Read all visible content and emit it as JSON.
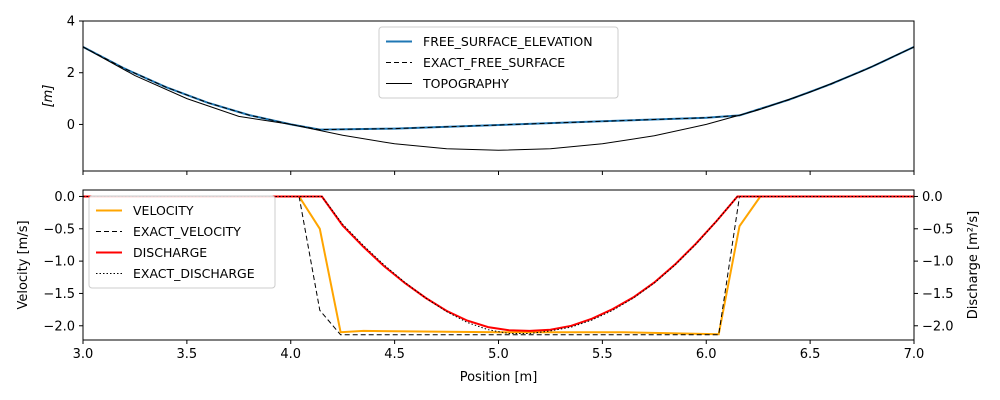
{
  "chart_data": [
    {
      "type": "line",
      "ylabel": "[m]",
      "xlim": [
        3.0,
        7.0
      ],
      "ylim": [
        -1.8,
        4.0
      ],
      "yticks": [
        0,
        2,
        4
      ],
      "grid": false,
      "legend_placement": "top-center",
      "series": [
        {
          "name": "FREE_SURFACE_ELEVATION",
          "color": "#1f77b4",
          "style": "solid",
          "x": [
            3.0,
            3.2,
            3.4,
            3.6,
            3.8,
            4.0,
            4.14,
            4.5,
            5.0,
            5.5,
            6.0,
            6.16,
            6.4,
            6.6,
            6.8,
            7.0
          ],
          "y": [
            3.0,
            2.16,
            1.44,
            0.84,
            0.36,
            0.0,
            -0.2,
            -0.16,
            -0.02,
            0.12,
            0.26,
            0.35,
            0.96,
            1.56,
            2.24,
            3.0
          ]
        },
        {
          "name": "EXACT_FREE_SURFACE",
          "color": "#000000",
          "style": "dashed",
          "x": [
            3.0,
            3.2,
            3.4,
            3.6,
            3.8,
            4.0,
            4.14,
            4.5,
            5.0,
            5.5,
            6.0,
            6.16,
            6.4,
            6.6,
            6.8,
            7.0
          ],
          "y": [
            3.0,
            2.16,
            1.44,
            0.84,
            0.36,
            0.0,
            -0.2,
            -0.16,
            -0.02,
            0.12,
            0.26,
            0.35,
            0.96,
            1.56,
            2.24,
            3.0
          ]
        },
        {
          "name": "TOPOGRAPHY",
          "color": "#000000",
          "style": "solid",
          "x": [
            3.0,
            3.25,
            3.5,
            3.75,
            4.0,
            4.25,
            4.5,
            4.75,
            5.0,
            5.25,
            5.5,
            5.75,
            6.0,
            6.25,
            6.5,
            6.75,
            7.0
          ],
          "y": [
            3.0,
            1.89,
            1.0,
            0.31,
            0.0,
            -0.42,
            -0.75,
            -0.94,
            -1.0,
            -0.94,
            -0.75,
            -0.44,
            0.0,
            0.56,
            1.25,
            2.06,
            3.0
          ]
        }
      ]
    },
    {
      "type": "line",
      "xlabel": "Position [m]",
      "ylabel": "Velocity [m/s]",
      "ylabel_right": "Discharge [m²/s]",
      "xlim": [
        3.0,
        7.0
      ],
      "ylim": [
        -2.22,
        0.1
      ],
      "xticks": [
        3.0,
        3.5,
        4.0,
        4.5,
        5.0,
        5.5,
        6.0,
        6.5,
        7.0
      ],
      "yticks": [
        0.0,
        -0.5,
        -1.0,
        -1.5,
        -2.0
      ],
      "grid": false,
      "legend_placement": "left",
      "series": [
        {
          "name": "VELOCITY",
          "color": "#ffa500",
          "style": "solid",
          "x": [
            3.0,
            4.04,
            4.14,
            4.24,
            4.35,
            5.0,
            5.6,
            6.06,
            6.16,
            6.26,
            7.0
          ],
          "y": [
            0.0,
            0.0,
            -0.5,
            -2.1,
            -2.08,
            -2.1,
            -2.1,
            -2.13,
            -0.46,
            0.0,
            0.0
          ]
        },
        {
          "name": "EXACT_VELOCITY",
          "color": "#000000",
          "style": "dashed",
          "x": [
            3.0,
            4.04,
            4.14,
            4.24,
            5.0,
            6.06,
            6.16,
            7.0
          ],
          "y": [
            0.0,
            0.0,
            -1.76,
            -2.14,
            -2.14,
            -2.14,
            0.0,
            0.0
          ]
        },
        {
          "name": "DISCHARGE",
          "color": "#ff0000",
          "style": "solid",
          "x": [
            3.0,
            4.15,
            4.25,
            4.35,
            4.45,
            4.55,
            4.65,
            4.75,
            4.85,
            4.95,
            5.05,
            5.15,
            5.25,
            5.35,
            5.45,
            5.55,
            5.65,
            5.75,
            5.85,
            5.95,
            6.05,
            6.15,
            7.0
          ],
          "y": [
            0.0,
            0.0,
            -0.45,
            -0.78,
            -1.08,
            -1.34,
            -1.57,
            -1.77,
            -1.92,
            -2.02,
            -2.07,
            -2.08,
            -2.06,
            -2.0,
            -1.89,
            -1.74,
            -1.56,
            -1.33,
            -1.05,
            -0.73,
            -0.38,
            0.0,
            0.0
          ]
        },
        {
          "name": "EXACT_DISCHARGE",
          "color": "#000000",
          "style": "dotted",
          "x": [
            3.0,
            4.15,
            4.25,
            4.35,
            4.45,
            4.55,
            4.65,
            4.75,
            4.85,
            4.95,
            5.05,
            5.15,
            5.25,
            5.35,
            5.45,
            5.55,
            5.65,
            5.75,
            5.85,
            5.95,
            6.05,
            6.15,
            7.0
          ],
          "y": [
            0.0,
            0.0,
            -0.43,
            -0.76,
            -1.06,
            -1.33,
            -1.57,
            -1.78,
            -1.95,
            -2.06,
            -2.12,
            -2.12,
            -2.08,
            -2.02,
            -1.91,
            -1.76,
            -1.57,
            -1.34,
            -1.06,
            -0.74,
            -0.38,
            0.0,
            0.0
          ]
        }
      ]
    }
  ]
}
